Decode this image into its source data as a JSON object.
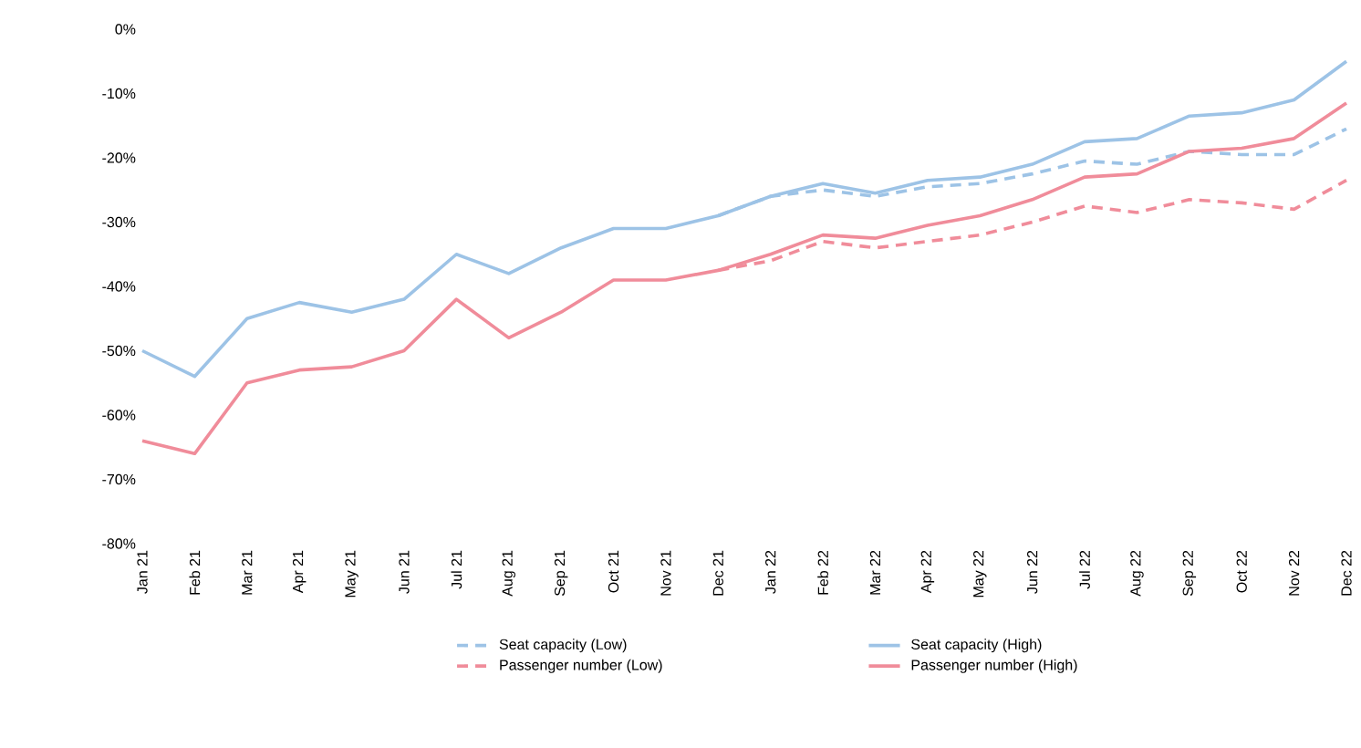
{
  "chart_data": {
    "type": "line",
    "categories": [
      "Jan 21",
      "Feb 21",
      "Mar 21",
      "Apr 21",
      "May 21",
      "Jun 21",
      "Jul 21",
      "Aug 21",
      "Sep 21",
      "Oct 21",
      "Nov 21",
      "Dec 21",
      "Jan 22",
      "Feb 22",
      "Mar 22",
      "Apr 22",
      "May 22",
      "Jun 22",
      "Jul 22",
      "Aug 22",
      "Sep 22",
      "Oct 22",
      "Nov 22",
      "Dec 22"
    ],
    "series": [
      {
        "name": "Seat capacity (Low)",
        "color": "#9dc3e6",
        "line_style": "dashed",
        "values": [
          null,
          null,
          null,
          null,
          null,
          null,
          null,
          null,
          null,
          null,
          null,
          -29,
          -26,
          -25,
          -26,
          -24.5,
          -24,
          -22.5,
          -20.5,
          -21,
          -19,
          -19.5,
          -19.5,
          -15.5
        ]
      },
      {
        "name": "Seat capacity (High)",
        "color": "#9dc3e6",
        "line_style": "solid",
        "values": [
          -50,
          -54,
          -45,
          -42.5,
          -44,
          -42,
          -35,
          -38,
          -34,
          -31,
          -31,
          -29,
          -26,
          -24,
          -25.5,
          -23.5,
          -23,
          -21,
          -17.5,
          -17,
          -13.5,
          -13,
          -11,
          -5
        ]
      },
      {
        "name": "Passenger number (Low)",
        "color": "#f08c9a",
        "line_style": "dashed",
        "values": [
          null,
          null,
          null,
          null,
          null,
          null,
          null,
          null,
          null,
          null,
          null,
          -37.5,
          -36,
          -33,
          -34,
          -33,
          -32,
          -30,
          -27.5,
          -28.5,
          -26.5,
          -27,
          -28,
          -23.5
        ]
      },
      {
        "name": "Passenger number (High)",
        "color": "#f08c9a",
        "line_style": "solid",
        "values": [
          -64,
          -66,
          -55,
          -53,
          -52.5,
          -50,
          -42,
          -48,
          -44,
          -39,
          -39,
          -37.5,
          -35,
          -32,
          -32.5,
          -30.5,
          -29,
          -26.5,
          -23,
          -22.5,
          -19,
          -18.5,
          -17,
          -11.5
        ]
      }
    ],
    "ylim": [
      -80,
      0
    ],
    "yticks": [
      {
        "value": -80,
        "label": "-80%"
      },
      {
        "value": -70,
        "label": "-70%"
      },
      {
        "value": -60,
        "label": "-60%"
      },
      {
        "value": -50,
        "label": "-50%"
      },
      {
        "value": -40,
        "label": "-40%"
      },
      {
        "value": -30,
        "label": "-30%"
      },
      {
        "value": -20,
        "label": "-20%"
      },
      {
        "value": -10,
        "label": "-10%"
      },
      {
        "value": 0,
        "label": "0%"
      }
    ],
    "legend": "bottom",
    "marker": "none"
  }
}
